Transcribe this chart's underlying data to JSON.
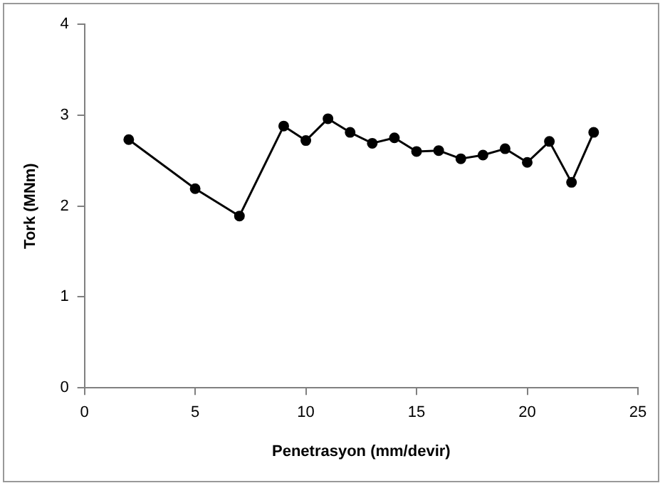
{
  "chart_data": {
    "type": "line",
    "xlabel": "Penetrasyon (mm/devir)",
    "ylabel": "Tork (MNm)",
    "x": [
      2,
      5,
      7,
      9,
      10,
      11,
      12,
      13,
      14,
      15,
      16,
      17,
      18,
      19,
      20,
      21,
      22,
      23
    ],
    "series": [
      {
        "color": "#000000",
        "values": [
          2.73,
          2.19,
          1.89,
          2.88,
          2.72,
          2.96,
          2.81,
          2.69,
          2.75,
          2.6,
          2.61,
          2.52,
          2.56,
          2.63,
          2.48,
          2.71,
          2.26,
          2.81
        ]
      }
    ],
    "xlim": [
      0,
      25
    ],
    "xticks": [
      0,
      5,
      10,
      15,
      20,
      25
    ],
    "ylim": [
      0,
      4
    ],
    "yticks": [
      0,
      1,
      2,
      3,
      4
    ],
    "grid": false,
    "legend": false,
    "marker": "circle",
    "line_style": "solid"
  }
}
